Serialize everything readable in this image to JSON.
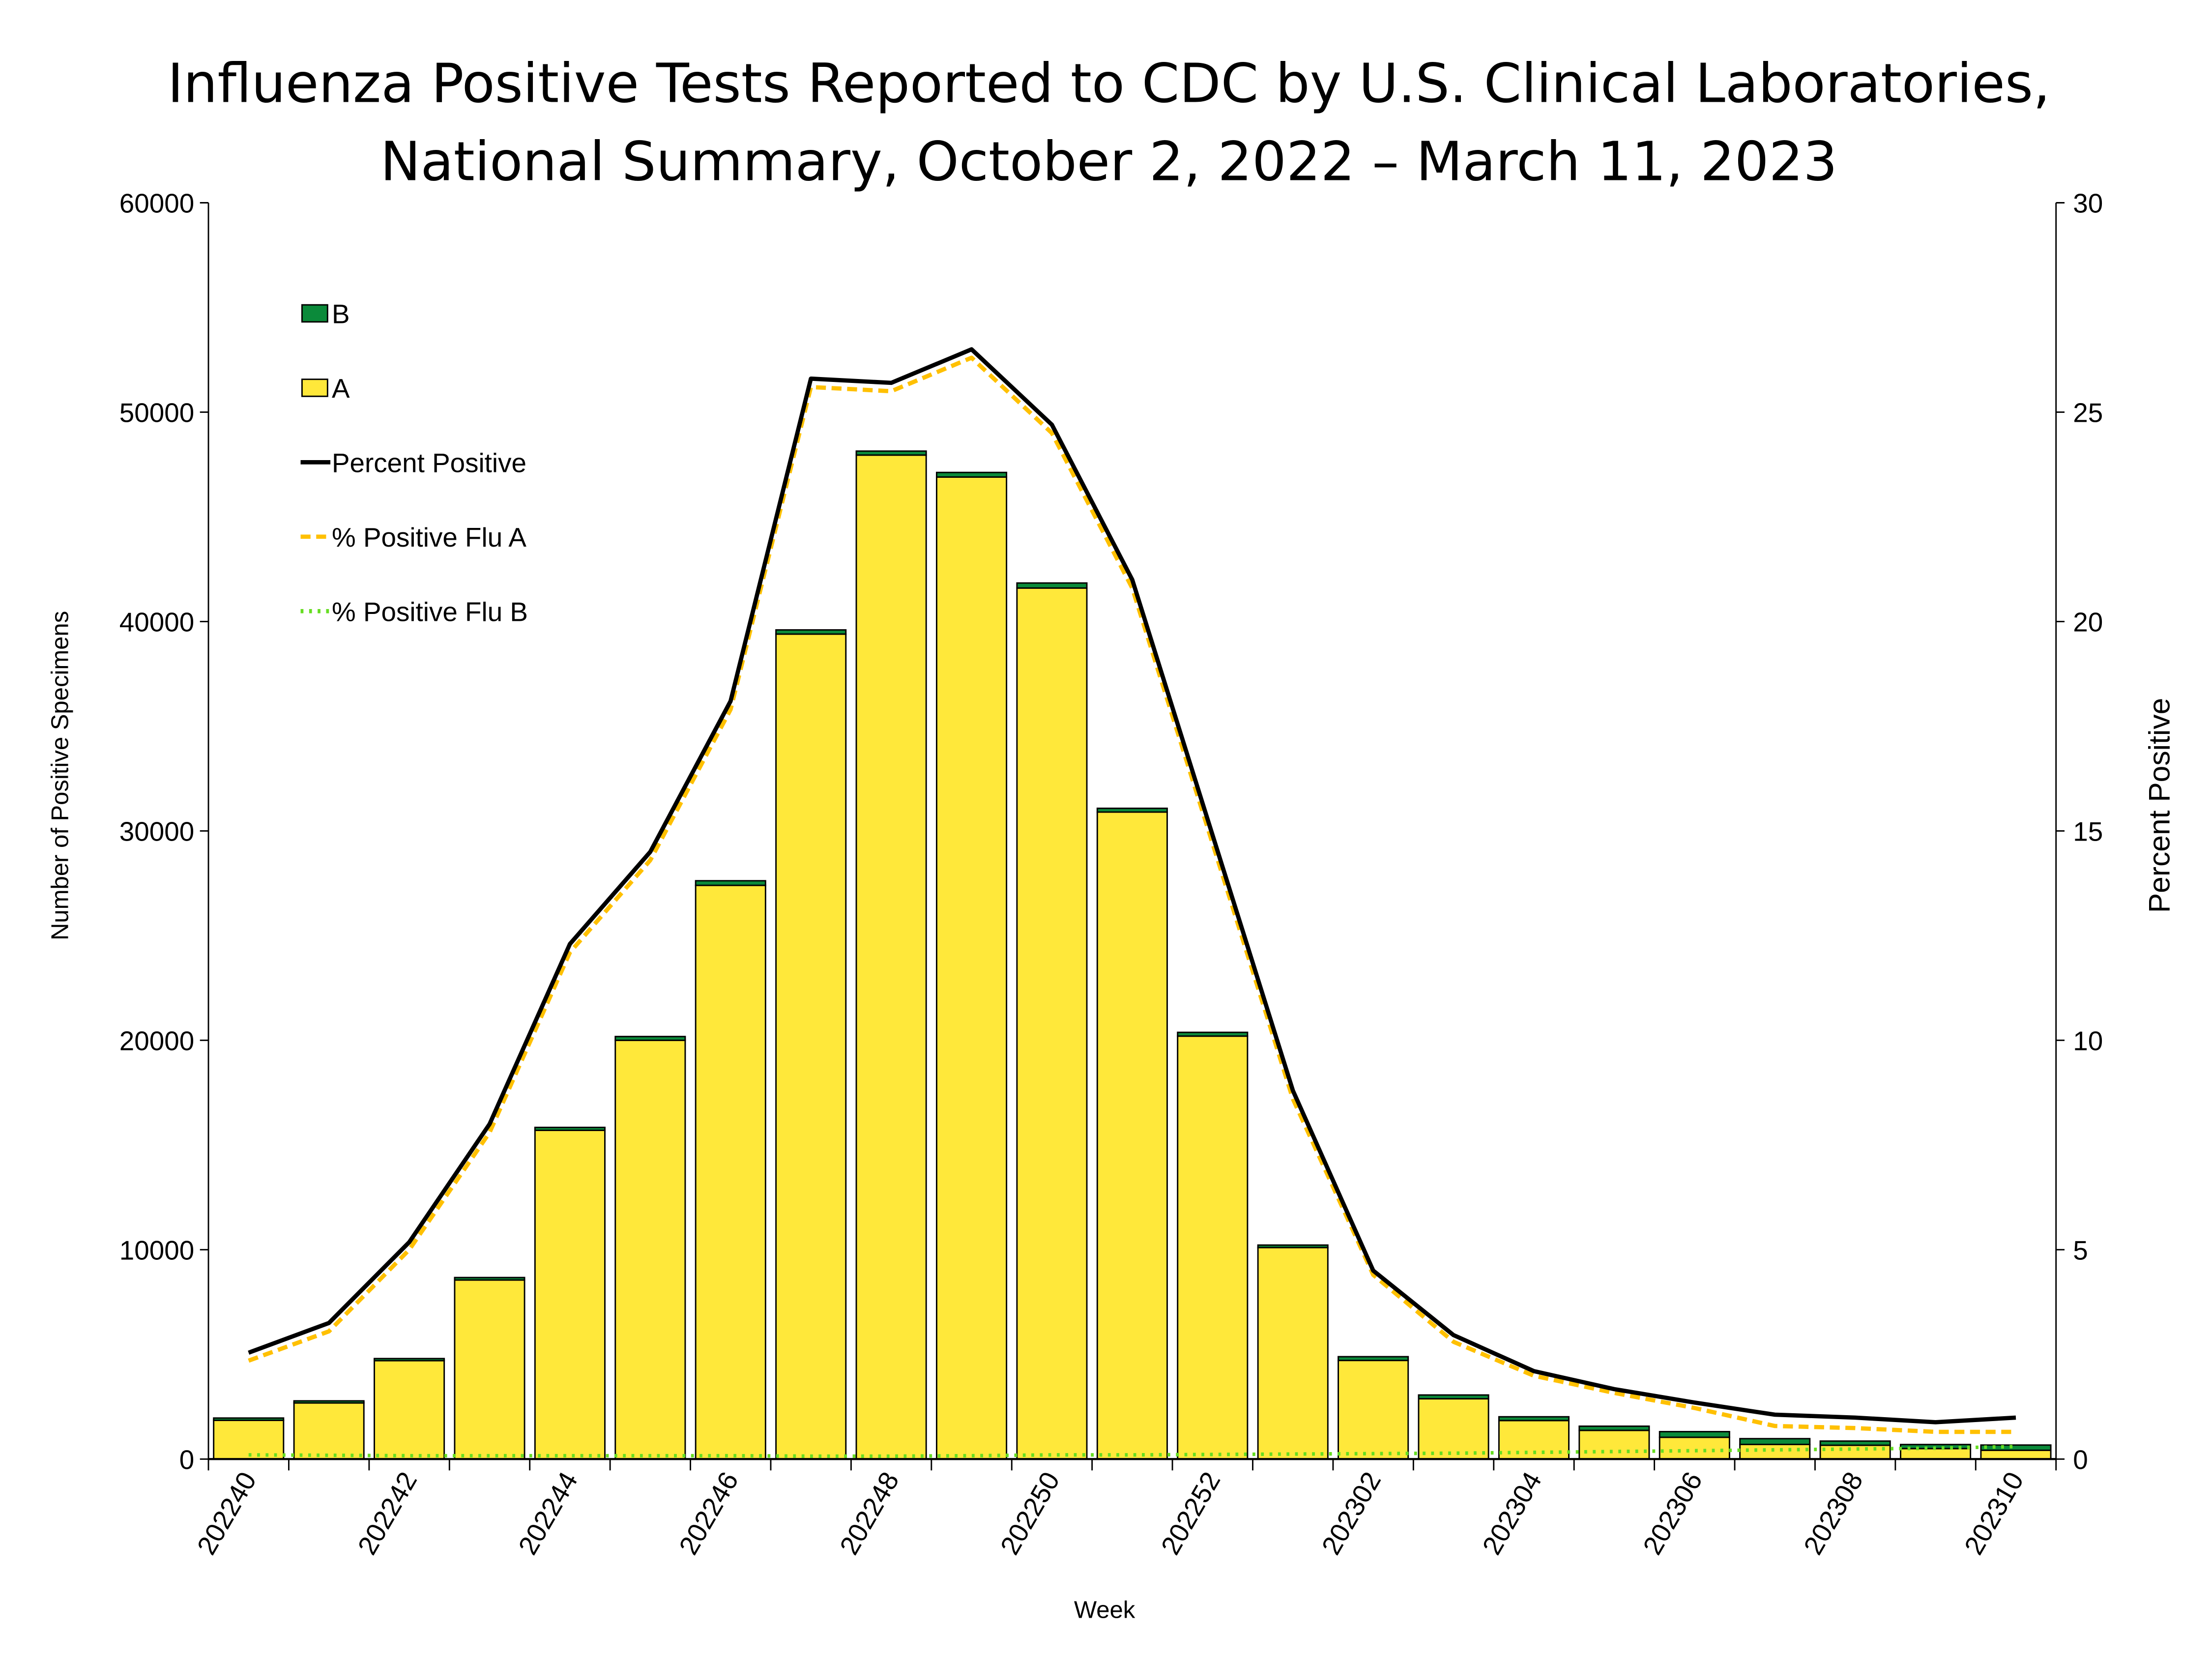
{
  "chart_data": {
    "type": "bar",
    "title": "Influenza Positive Tests Reported to CDC by U.S. Clinical Laboratories,",
    "subtitle": "National Summary, October 2, 2022 – March 11, 2023",
    "xlabel": "Week",
    "ylabel": "Number of Positive Specimens",
    "y2label": "Percent Positive",
    "ylim": [
      0,
      60000
    ],
    "y2lim": [
      0,
      30
    ],
    "yticks": [
      "0",
      "10000",
      "20000",
      "30000",
      "40000",
      "50000",
      "60000"
    ],
    "y2ticks": [
      "0",
      "5",
      "10",
      "15",
      "20",
      "25",
      "30"
    ],
    "stacked": true,
    "grid": false,
    "legend_placement": "top-left",
    "categories": [
      "202240",
      "202241",
      "202242",
      "202243",
      "202244",
      "202245",
      "202246",
      "202247",
      "202248",
      "202249",
      "202250",
      "202251",
      "202252",
      "202301",
      "202302",
      "202303",
      "202304",
      "202305",
      "202306",
      "202307",
      "202308",
      "202309",
      "202310"
    ],
    "xtick_labels": [
      "202240",
      "202242",
      "202244",
      "202246",
      "202248",
      "202250",
      "202252",
      "202302",
      "202304",
      "202306",
      "202308",
      "202310"
    ],
    "series": [
      {
        "name": "A",
        "kind": "bar",
        "axis": "left",
        "color": "#FFE83A",
        "values": [
          1850,
          2700,
          4700,
          8550,
          15700,
          20000,
          27400,
          39400,
          47950,
          46900,
          41600,
          30900,
          20200,
          10100,
          4710,
          2880,
          1840,
          1370,
          1040,
          700,
          660,
          500,
          420
        ]
      },
      {
        "name": "B",
        "kind": "bar",
        "axis": "left",
        "color": "#0B8A3A",
        "values": [
          110,
          80,
          100,
          120,
          140,
          180,
          220,
          200,
          190,
          220,
          240,
          180,
          180,
          120,
          180,
          180,
          180,
          200,
          270,
          275,
          200,
          195,
          250
        ]
      },
      {
        "name": "Percent Positive",
        "kind": "line",
        "axis": "right",
        "color": "#000000",
        "style": "solid",
        "values": [
          2.54,
          3.25,
          5.18,
          8.0,
          12.3,
          14.5,
          18.1,
          25.8,
          25.7,
          26.5,
          24.7,
          21.0,
          14.9,
          8.8,
          4.5,
          2.96,
          2.1,
          1.67,
          1.35,
          1.06,
          0.99,
          0.88,
          0.99
        ]
      },
      {
        "name": "% Positive Flu A",
        "kind": "line",
        "axis": "right",
        "color": "#FFC000",
        "style": "dashed",
        "values": [
          2.35,
          3.05,
          5.0,
          7.8,
          12.1,
          14.3,
          17.9,
          25.6,
          25.5,
          26.3,
          24.5,
          20.8,
          14.7,
          8.6,
          4.4,
          2.8,
          1.99,
          1.58,
          1.22,
          0.79,
          0.74,
          0.65,
          0.65
        ]
      },
      {
        "name": "% Positive Flu B",
        "kind": "line",
        "axis": "right",
        "color": "#66DD22",
        "style": "dotted",
        "values": [
          0.1,
          0.09,
          0.08,
          0.08,
          0.08,
          0.08,
          0.08,
          0.07,
          0.07,
          0.08,
          0.1,
          0.1,
          0.11,
          0.12,
          0.13,
          0.14,
          0.16,
          0.18,
          0.2,
          0.22,
          0.24,
          0.26,
          0.3
        ]
      }
    ]
  }
}
